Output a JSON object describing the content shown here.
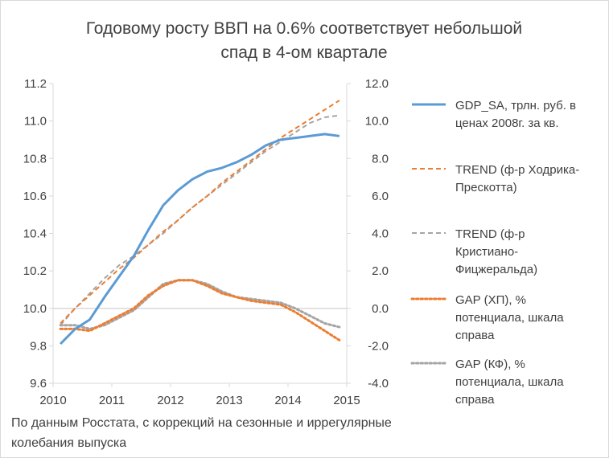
{
  "chart_data": {
    "type": "line",
    "title_lines": [
      "Годовому росту ВВП на 0.6% соответствует небольшой",
      "спад в 4-ом квартале"
    ],
    "footnote_lines": [
      "По данным Росстата, с коррекций на сезонные и иррегулярные",
      "колебания выпуска"
    ],
    "x_ticks": [
      "2010",
      "2011",
      "2012",
      "2013",
      "2014",
      "2015"
    ],
    "xlim": [
      2010,
      2015
    ],
    "y_left": {
      "ticks": [
        "9.6",
        "9.8",
        "10.0",
        "10.2",
        "10.4",
        "10.6",
        "10.8",
        "11.0",
        "11.2"
      ],
      "ylim": [
        9.6,
        11.2
      ]
    },
    "y_right": {
      "ticks": [
        "-4.0",
        "-2.0",
        "0.0",
        "2.0",
        "4.0",
        "6.0",
        "8.0",
        "10.0",
        "12.0"
      ],
      "ylim": [
        -4,
        12
      ]
    },
    "grid": false,
    "legend_position": "right",
    "series": [
      {
        "name": "GDP_SA, трлн. руб. в ценах 2008г. за кв.",
        "legend_lines": [
          "GDP_SA, трлн. руб. в",
          "ценах 2008г. за кв."
        ],
        "axis": "left",
        "color": "#5b9bd5",
        "style": "solid",
        "width": 3,
        "x": [
          2010.125,
          2010.375,
          2010.625,
          2010.875,
          2011.125,
          2011.375,
          2011.625,
          2011.875,
          2012.125,
          2012.375,
          2012.625,
          2012.875,
          2013.125,
          2013.375,
          2013.625,
          2013.875,
          2014.125,
          2014.375,
          2014.625,
          2014.875
        ],
        "y": [
          9.81,
          9.89,
          9.94,
          10.06,
          10.17,
          10.28,
          10.42,
          10.55,
          10.63,
          10.69,
          10.73,
          10.75,
          10.78,
          10.82,
          10.87,
          10.9,
          10.91,
          10.92,
          10.93,
          10.92
        ]
      },
      {
        "name": "TREND (ф-р Ходрика-Прескотта)",
        "legend_lines": [
          "TREND (ф-р Ходрика-",
          "Прескотта)"
        ],
        "axis": "left",
        "color": "#ed7d31",
        "style": "dashed",
        "width": 2,
        "x": [
          2010.125,
          2010.375,
          2010.625,
          2010.875,
          2011.125,
          2011.375,
          2011.625,
          2011.875,
          2012.125,
          2012.375,
          2012.625,
          2012.875,
          2013.125,
          2013.375,
          2013.625,
          2013.875,
          2014.125,
          2014.375,
          2014.625,
          2014.875
        ],
        "y": [
          9.92,
          10.0,
          10.07,
          10.14,
          10.21,
          10.27,
          10.34,
          10.41,
          10.47,
          10.54,
          10.6,
          10.67,
          10.73,
          10.79,
          10.85,
          10.91,
          10.96,
          11.01,
          11.06,
          11.11
        ]
      },
      {
        "name": "TREND (ф-р Кристиано-Фицжеральда)",
        "legend_lines": [
          "TREND (ф-р",
          "Кристиано-",
          "Фицжеральда)"
        ],
        "axis": "left",
        "color": "#a5a5a5",
        "style": "dashed",
        "width": 2,
        "x": [
          2010.125,
          2010.375,
          2010.625,
          2010.875,
          2011.125,
          2011.375,
          2011.625,
          2011.875,
          2012.125,
          2012.375,
          2012.625,
          2012.875,
          2013.125,
          2013.375,
          2013.625,
          2013.875,
          2014.125,
          2014.375,
          2014.625,
          2014.875
        ],
        "y": [
          9.91,
          10.0,
          10.08,
          10.16,
          10.23,
          10.28,
          10.34,
          10.4,
          10.47,
          10.54,
          10.6,
          10.66,
          10.72,
          10.78,
          10.84,
          10.89,
          10.94,
          10.99,
          11.02,
          11.03
        ]
      },
      {
        "name": "GAP (ХП), % потенциала, шкала справа",
        "legend_lines": [
          "GAP (ХП), %",
          "потенциала, шкала",
          "справа"
        ],
        "axis": "right",
        "color": "#ed7d31",
        "style": "dotted",
        "width": 3,
        "x": [
          2010.125,
          2010.375,
          2010.625,
          2010.875,
          2011.125,
          2011.375,
          2011.625,
          2011.875,
          2012.125,
          2012.375,
          2012.625,
          2012.875,
          2013.125,
          2013.375,
          2013.625,
          2013.875,
          2014.125,
          2014.375,
          2014.625,
          2014.875
        ],
        "y": [
          -1.1,
          -1.1,
          -1.2,
          -0.8,
          -0.4,
          0.0,
          0.7,
          1.2,
          1.5,
          1.5,
          1.2,
          0.8,
          0.6,
          0.4,
          0.3,
          0.2,
          -0.2,
          -0.7,
          -1.2,
          -1.7
        ]
      },
      {
        "name": "GAP (КФ), % потенциала, шкала справа",
        "legend_lines": [
          "GAP (КФ), %",
          "потенциала, шкала",
          "справа"
        ],
        "axis": "right",
        "color": "#a5a5a5",
        "style": "dotted",
        "width": 3,
        "x": [
          2010.125,
          2010.375,
          2010.625,
          2010.875,
          2011.125,
          2011.375,
          2011.625,
          2011.875,
          2012.125,
          2012.375,
          2012.625,
          2012.875,
          2013.125,
          2013.375,
          2013.625,
          2013.875,
          2014.125,
          2014.375,
          2014.625,
          2014.875
        ],
        "y": [
          -0.9,
          -0.9,
          -1.1,
          -0.9,
          -0.5,
          -0.1,
          0.6,
          1.3,
          1.5,
          1.5,
          1.3,
          0.9,
          0.6,
          0.5,
          0.4,
          0.3,
          0.0,
          -0.4,
          -0.8,
          -1.0
        ]
      }
    ]
  }
}
